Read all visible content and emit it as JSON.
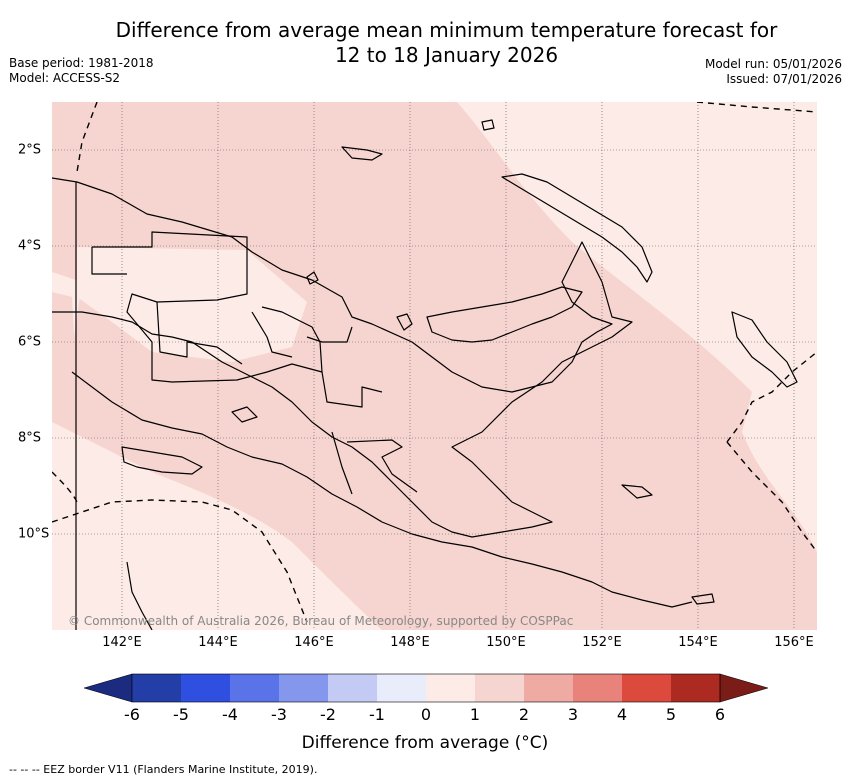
{
  "title": {
    "line1": "Difference from average mean minimum temperature forecast for",
    "line2": "12 to 18 January 2026"
  },
  "meta_left": {
    "base_period": "Base period: 1981-2018",
    "model": "Model: ACCESS-S2"
  },
  "meta_right": {
    "model_run": "Model run: 05/01/2026",
    "issued": "Issued: 07/01/2026"
  },
  "map": {
    "lon_ticks": [
      "142°E",
      "144°E",
      "146°E",
      "148°E",
      "150°E",
      "152°E",
      "154°E",
      "156°E"
    ],
    "lon_values": [
      142,
      144,
      146,
      148,
      150,
      152,
      154,
      156
    ],
    "lat_ticks": [
      "2°S",
      "4°S",
      "6°S",
      "8°S",
      "10°S"
    ],
    "lat_values": [
      -2,
      -4,
      -6,
      -8,
      -10
    ],
    "lon_range": [
      140.6,
      156.5
    ],
    "lat_range": [
      -12.0,
      -1.0
    ],
    "copyright": "© Commonwealth of Australia 2026, Bureau of Meteorology, supported by COSPPac",
    "fill_colors": {
      "band_0_1": "#fcebe6",
      "band_1_2": "#f6d4cf"
    }
  },
  "colorbar": {
    "ticks": [
      "-6",
      "-5",
      "-4",
      "-3",
      "-2",
      "-1",
      "0",
      "1",
      "2",
      "3",
      "4",
      "5",
      "6"
    ],
    "colors": [
      "#243ea8",
      "#2f4fe0",
      "#5a73e8",
      "#8597ed",
      "#c3cbf5",
      "#e8ecfb",
      "#fcebe6",
      "#f6d4cf",
      "#efaaa3",
      "#e8827a",
      "#dc4a3e",
      "#ad2a22"
    ],
    "under_color": "#1b2b80",
    "over_color": "#7a1c18",
    "label": "Difference from average (°C)"
  },
  "footer": {
    "eez_note": "--  --  -- EEZ border V11 (Flanders Marine Institute, 2019)."
  }
}
